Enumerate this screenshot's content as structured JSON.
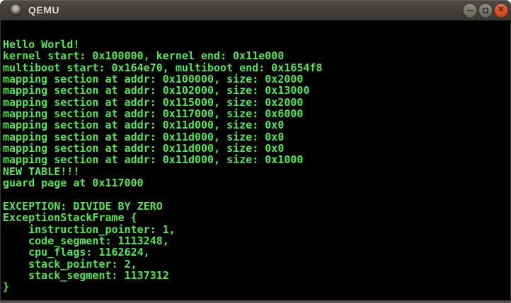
{
  "window": {
    "title": "QEMU",
    "controls": {
      "minimize_symbol": "minimize",
      "maximize_symbol": "maximize",
      "close_symbol": "✕"
    },
    "colors": {
      "titlebar_top": "#4c4a45",
      "titlebar_bottom": "#3a3834",
      "title_text": "#dfdbd2",
      "close_button": "#d6522b",
      "gray_button": "#7b766e"
    }
  },
  "console": {
    "background": "#000000",
    "text_color": "#57e457",
    "lines": [
      "Hello World!",
      "kernel start: 0x100000, kernel end: 0x11e000",
      "multiboot start: 0x164e70, multiboot end: 0x1654f8",
      "mapping section at addr: 0x100000, size: 0x2000",
      "mapping section at addr: 0x102000, size: 0x13000",
      "mapping section at addr: 0x115000, size: 0x2000",
      "mapping section at addr: 0x117000, size: 0x6000",
      "mapping section at addr: 0x11d000, size: 0x0",
      "mapping section at addr: 0x11d000, size: 0x0",
      "mapping section at addr: 0x11d000, size: 0x0",
      "mapping section at addr: 0x11d000, size: 0x1000",
      "NEW TABLE!!!",
      "guard page at 0x117000",
      "",
      "EXCEPTION: DIVIDE BY ZERO",
      "ExceptionStackFrame {",
      "    instruction_pointer: 1,",
      "    code_segment: 1113248,",
      "    cpu_flags: 1162624,",
      "    stack_pointer: 2,",
      "    stack_segment: 1137312",
      "}"
    ]
  }
}
